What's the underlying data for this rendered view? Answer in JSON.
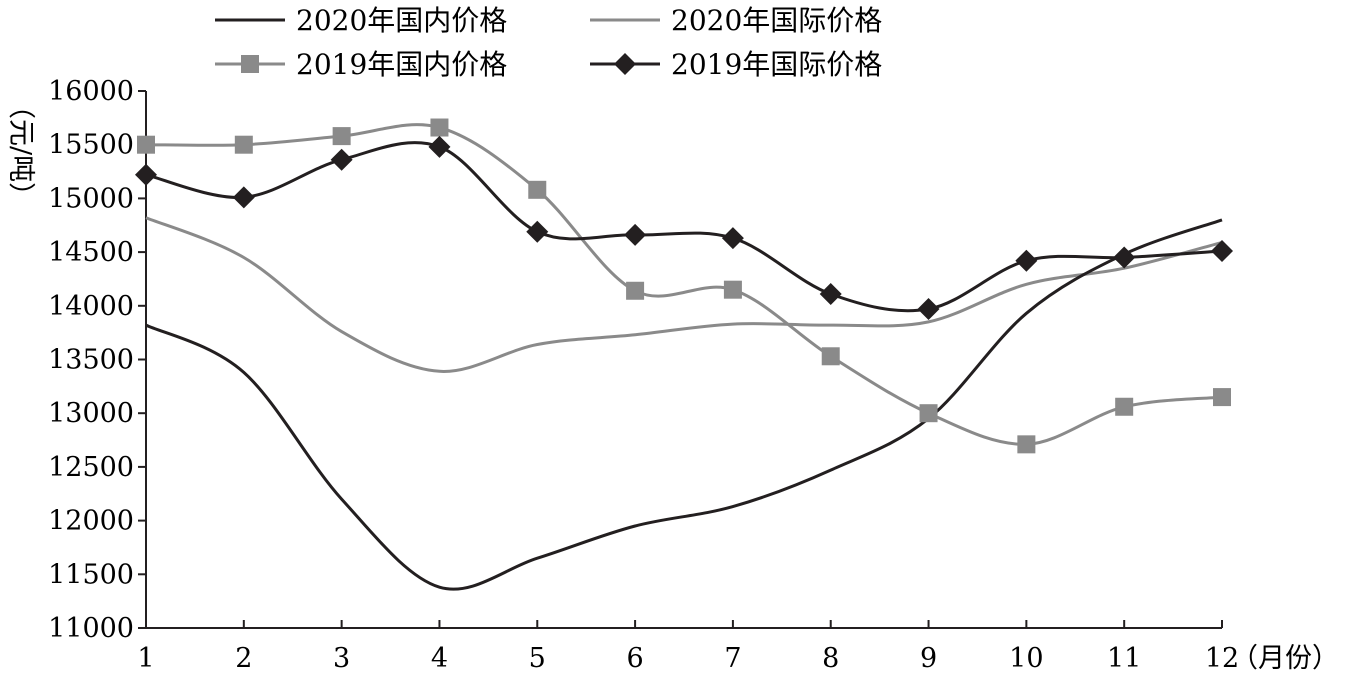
{
  "chart_data": {
    "type": "line",
    "title": "",
    "xlabel": "（月份）",
    "ylabel": "（元/吨）",
    "categories": [
      "1",
      "2",
      "3",
      "4",
      "5",
      "6",
      "7",
      "8",
      "9",
      "10",
      "11",
      "12"
    ],
    "ylim": [
      11000,
      16000
    ],
    "yticks": [
      "11000",
      "11500",
      "12000",
      "12500",
      "13000",
      "13500",
      "14000",
      "14500",
      "15000",
      "15500",
      "16000"
    ],
    "grid": false,
    "legend_position": "top",
    "series": [
      {
        "name": "2020年国内价格",
        "color": "#231f20",
        "marker": "none",
        "values": [
          13820,
          13380,
          12200,
          11380,
          11650,
          11950,
          12130,
          12470,
          12950,
          13930,
          14480,
          14800
        ]
      },
      {
        "name": "2020年国际价格",
        "color": "#8a8a8a",
        "marker": "none",
        "values": [
          14820,
          14450,
          13760,
          13390,
          13640,
          13730,
          13830,
          13820,
          13850,
          14200,
          14350,
          14590
        ]
      },
      {
        "name": "2019年国内价格",
        "color": "#8a8a8a",
        "marker": "square",
        "values": [
          15500,
          15500,
          15580,
          15660,
          15080,
          14140,
          14150,
          13530,
          13000,
          12710,
          13060,
          13150
        ]
      },
      {
        "name": "2019年国际价格",
        "color": "#231f20",
        "marker": "diamond",
        "values": [
          15220,
          15010,
          15360,
          15480,
          14690,
          14660,
          14630,
          14110,
          13970,
          14420,
          14450,
          14510
        ]
      }
    ]
  }
}
